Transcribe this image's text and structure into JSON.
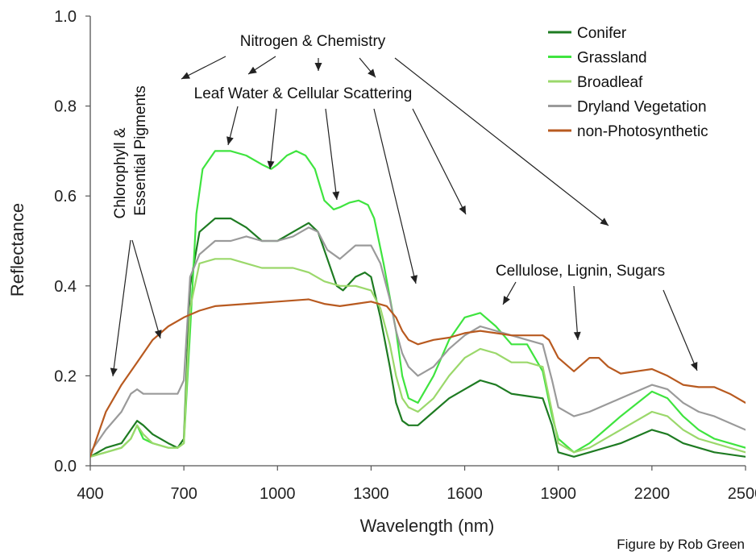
{
  "chart_data": {
    "type": "line",
    "xlabel": "Wavelength (nm)",
    "ylabel": "Reflectance",
    "xlim": [
      400,
      2500
    ],
    "ylim": [
      0,
      1.0
    ],
    "x_ticks": [
      "400",
      "700",
      "1000",
      "1300",
      "1600",
      "1900",
      "2200",
      "2500"
    ],
    "x_tick_values": [
      400,
      700,
      1000,
      1300,
      1600,
      1900,
      2200,
      2500
    ],
    "y_ticks": [
      "0.0",
      "0.2",
      "0.4",
      "0.6",
      "0.8",
      "1.0"
    ],
    "y_tick_values": [
      0,
      0.2,
      0.4,
      0.6,
      0.8,
      1.0
    ],
    "grid": false,
    "legend_position": "top-right",
    "series": [
      {
        "name": "Conifer",
        "color": "#1e7b22",
        "x": [
          400,
          450,
          500,
          530,
          550,
          570,
          600,
          650,
          680,
          700,
          720,
          750,
          800,
          850,
          900,
          950,
          1000,
          1050,
          1100,
          1130,
          1160,
          1190,
          1210,
          1250,
          1280,
          1300,
          1330,
          1360,
          1380,
          1400,
          1420,
          1450,
          1500,
          1550,
          1600,
          1650,
          1700,
          1750,
          1800,
          1850,
          1880,
          1900,
          1950,
          2000,
          2100,
          2200,
          2250,
          2300,
          2350,
          2400,
          2500
        ],
        "y": [
          0.02,
          0.04,
          0.05,
          0.08,
          0.1,
          0.09,
          0.07,
          0.05,
          0.04,
          0.06,
          0.4,
          0.52,
          0.55,
          0.55,
          0.53,
          0.5,
          0.5,
          0.52,
          0.54,
          0.52,
          0.46,
          0.4,
          0.39,
          0.42,
          0.43,
          0.42,
          0.33,
          0.22,
          0.14,
          0.1,
          0.09,
          0.09,
          0.12,
          0.15,
          0.17,
          0.19,
          0.18,
          0.16,
          0.155,
          0.15,
          0.09,
          0.03,
          0.02,
          0.03,
          0.05,
          0.08,
          0.07,
          0.05,
          0.04,
          0.03,
          0.02
        ]
      },
      {
        "name": "Grassland",
        "color": "#3fe43f",
        "x": [
          400,
          450,
          500,
          530,
          550,
          570,
          600,
          650,
          680,
          700,
          720,
          740,
          760,
          800,
          850,
          900,
          950,
          980,
          1000,
          1030,
          1060,
          1090,
          1120,
          1150,
          1180,
          1200,
          1230,
          1260,
          1290,
          1310,
          1340,
          1380,
          1400,
          1420,
          1450,
          1500,
          1550,
          1600,
          1650,
          1700,
          1750,
          1800,
          1850,
          1880,
          1900,
          1950,
          2000,
          2100,
          2200,
          2250,
          2300,
          2350,
          2400,
          2500
        ],
        "y": [
          0.02,
          0.03,
          0.04,
          0.06,
          0.09,
          0.06,
          0.05,
          0.04,
          0.04,
          0.05,
          0.3,
          0.56,
          0.66,
          0.7,
          0.7,
          0.69,
          0.67,
          0.66,
          0.67,
          0.69,
          0.7,
          0.69,
          0.66,
          0.59,
          0.57,
          0.575,
          0.585,
          0.59,
          0.58,
          0.55,
          0.45,
          0.3,
          0.2,
          0.15,
          0.14,
          0.2,
          0.28,
          0.33,
          0.34,
          0.31,
          0.27,
          0.27,
          0.21,
          0.11,
          0.06,
          0.03,
          0.05,
          0.11,
          0.165,
          0.15,
          0.11,
          0.08,
          0.06,
          0.04
        ]
      },
      {
        "name": "Broadleaf",
        "color": "#9bd86b",
        "x": [
          400,
          450,
          500,
          530,
          550,
          570,
          600,
          650,
          680,
          700,
          720,
          750,
          800,
          850,
          900,
          950,
          1000,
          1050,
          1100,
          1150,
          1200,
          1250,
          1300,
          1330,
          1360,
          1380,
          1400,
          1420,
          1450,
          1500,
          1550,
          1600,
          1650,
          1700,
          1750,
          1800,
          1850,
          1880,
          1900,
          1950,
          2000,
          2100,
          2200,
          2250,
          2300,
          2350,
          2400,
          2500
        ],
        "y": [
          0.02,
          0.03,
          0.04,
          0.06,
          0.09,
          0.07,
          0.05,
          0.04,
          0.04,
          0.05,
          0.35,
          0.45,
          0.46,
          0.46,
          0.45,
          0.44,
          0.44,
          0.44,
          0.43,
          0.41,
          0.4,
          0.4,
          0.39,
          0.35,
          0.27,
          0.2,
          0.15,
          0.13,
          0.12,
          0.15,
          0.2,
          0.24,
          0.26,
          0.25,
          0.23,
          0.23,
          0.22,
          0.12,
          0.05,
          0.03,
          0.04,
          0.08,
          0.12,
          0.11,
          0.08,
          0.06,
          0.05,
          0.03
        ]
      },
      {
        "name": "Dryland Vegetation",
        "color": "#9a9a9a",
        "x": [
          400,
          450,
          500,
          530,
          550,
          570,
          600,
          650,
          680,
          700,
          720,
          750,
          800,
          850,
          900,
          950,
          1000,
          1050,
          1100,
          1130,
          1160,
          1200,
          1250,
          1300,
          1330,
          1360,
          1380,
          1400,
          1420,
          1450,
          1500,
          1550,
          1600,
          1650,
          1700,
          1750,
          1800,
          1850,
          1880,
          1900,
          1950,
          2000,
          2100,
          2200,
          2250,
          2300,
          2350,
          2400,
          2500
        ],
        "y": [
          0.03,
          0.08,
          0.12,
          0.16,
          0.17,
          0.16,
          0.16,
          0.16,
          0.16,
          0.19,
          0.42,
          0.47,
          0.5,
          0.5,
          0.51,
          0.5,
          0.5,
          0.51,
          0.53,
          0.52,
          0.48,
          0.46,
          0.49,
          0.49,
          0.45,
          0.37,
          0.3,
          0.25,
          0.22,
          0.2,
          0.22,
          0.26,
          0.29,
          0.31,
          0.3,
          0.29,
          0.28,
          0.27,
          0.19,
          0.13,
          0.11,
          0.12,
          0.15,
          0.18,
          0.17,
          0.14,
          0.12,
          0.11,
          0.08
        ]
      },
      {
        "name": "non-Photosynthetic",
        "color": "#b85a20",
        "x": [
          400,
          450,
          500,
          550,
          600,
          650,
          700,
          750,
          800,
          900,
          1000,
          1100,
          1150,
          1200,
          1250,
          1300,
          1350,
          1380,
          1400,
          1420,
          1450,
          1500,
          1550,
          1600,
          1650,
          1700,
          1750,
          1800,
          1850,
          1870,
          1900,
          1950,
          2000,
          2030,
          2060,
          2100,
          2150,
          2200,
          2250,
          2300,
          2350,
          2400,
          2450,
          2500
        ],
        "y": [
          0.02,
          0.12,
          0.18,
          0.23,
          0.28,
          0.31,
          0.33,
          0.345,
          0.355,
          0.36,
          0.365,
          0.37,
          0.36,
          0.355,
          0.36,
          0.365,
          0.355,
          0.33,
          0.3,
          0.28,
          0.27,
          0.28,
          0.285,
          0.295,
          0.3,
          0.295,
          0.29,
          0.29,
          0.29,
          0.28,
          0.24,
          0.21,
          0.24,
          0.24,
          0.22,
          0.205,
          0.21,
          0.215,
          0.2,
          0.18,
          0.175,
          0.175,
          0.16,
          0.14
        ]
      }
    ],
    "annotations": [
      {
        "text": "Nitrogen & Chemistry"
      },
      {
        "text": "Leaf Water & Cellular Scattering"
      },
      {
        "text": "Chlorophyll &"
      },
      {
        "text": "Essential Pigments"
      },
      {
        "text": "Cellulose, Lignin, Sugars"
      }
    ]
  },
  "credit": "Figure by Rob Green"
}
